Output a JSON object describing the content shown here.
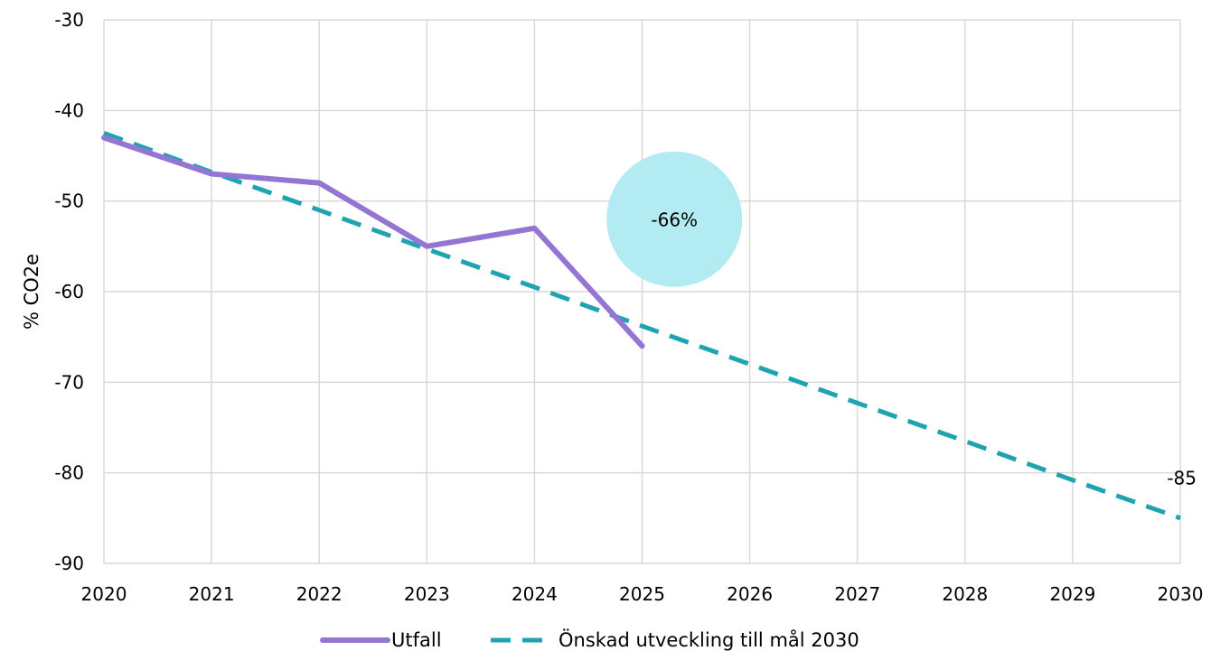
{
  "chart_data": {
    "type": "line",
    "x": [
      2020,
      2021,
      2022,
      2023,
      2024,
      2025,
      2026,
      2027,
      2028,
      2029,
      2030
    ],
    "xlim": [
      2020,
      2030
    ],
    "ylim": [
      -90,
      -30
    ],
    "yticks": [
      -30,
      -40,
      -50,
      -60,
      -70,
      -80,
      -90
    ],
    "ylabel": "% CO2e",
    "xlabel": "",
    "title": "",
    "grid": true,
    "legend_position": "bottom",
    "series": [
      {
        "name": "Utfall",
        "style": "solid",
        "color": "#9575d4",
        "x": [
          2020,
          2021,
          2022,
          2023,
          2024,
          2025
        ],
        "values": [
          -43,
          -47,
          -48,
          -55,
          -53,
          -66
        ]
      },
      {
        "name": "Önskad utveckling till mål 2030",
        "style": "dashed",
        "color": "#1fa3b0",
        "x": [
          2020,
          2021,
          2022,
          2023,
          2024,
          2025,
          2026,
          2027,
          2028,
          2029,
          2030
        ],
        "values": [
          -42.5,
          -46.8,
          -51,
          -55.3,
          -59.5,
          -63.8,
          -68,
          -72.3,
          -76.5,
          -80.8,
          -85
        ]
      }
    ],
    "annotations": [
      {
        "text": "-66%",
        "x": 2025.3,
        "y": -52,
        "shape": "circle",
        "fill": "#b3ebf2"
      },
      {
        "text": "-85",
        "x": 2030,
        "y": -80.6
      }
    ]
  }
}
